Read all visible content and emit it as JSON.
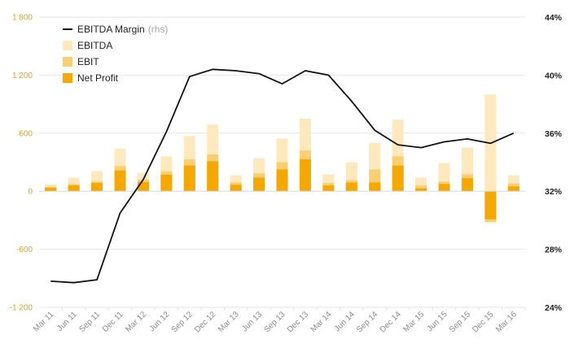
{
  "chart_data": {
    "type": "bar",
    "categories": [
      "Mar 11",
      "Jun 11",
      "Sep 11",
      "Dec 11",
      "Mar 12",
      "Jun 12",
      "Sep 12",
      "Dec 12",
      "Mar 13",
      "Jun 13",
      "Sep 13",
      "Dec 13",
      "Mar 14",
      "Jun 14",
      "Sep 14",
      "Dec 14",
      "Mar 15",
      "Jun 15",
      "Sep 15",
      "Dec 15",
      "Mar 16"
    ],
    "series": [
      {
        "name": "EBITDA",
        "kind": "bar",
        "axis": "left",
        "color": "#fde9bd",
        "values": [
          70,
          140,
          210,
          440,
          190,
          360,
          570,
          690,
          165,
          340,
          545,
          750,
          175,
          300,
          500,
          740,
          140,
          290,
          450,
          1000,
          165
        ]
      },
      {
        "name": "EBIT",
        "kind": "bar",
        "axis": "left",
        "color": "#f9cf72",
        "values": [
          45,
          75,
          100,
          260,
          120,
          205,
          330,
          380,
          90,
          185,
          300,
          420,
          85,
          115,
          225,
          360,
          60,
          100,
          175,
          -320,
          80
        ]
      },
      {
        "name": "Net Profit",
        "kind": "bar",
        "axis": "left",
        "color": "#f5a800",
        "values": [
          35,
          60,
          85,
          215,
          95,
          170,
          265,
          310,
          65,
          140,
          225,
          330,
          60,
          90,
          90,
          265,
          30,
          75,
          135,
          -290,
          50
        ]
      },
      {
        "name": "EBITDA Margin",
        "kind": "line",
        "axis": "right",
        "color": "#111111",
        "values": [
          25.8,
          25.7,
          25.9,
          30.5,
          32.8,
          36.1,
          39.9,
          40.4,
          40.3,
          40.1,
          39.4,
          40.3,
          40.0,
          38.2,
          36.2,
          35.2,
          35.0,
          35.4,
          35.6,
          35.3,
          36.0
        ]
      }
    ],
    "legend": {
      "position": "top-left",
      "items": [
        {
          "label": "EBITDA Margin",
          "note": "(rhs)",
          "color": "#111111",
          "kind": "line"
        },
        {
          "label": "EBITDA",
          "color": "#fde9bd",
          "kind": "bar"
        },
        {
          "label": "EBIT",
          "color": "#f9cf72",
          "kind": "bar"
        },
        {
          "label": "Net Profit",
          "color": "#f5a800",
          "kind": "bar"
        }
      ]
    },
    "y_left": {
      "ticks": [
        "1 800",
        "1 200",
        "600",
        "0",
        "-600",
        "-1 200"
      ],
      "tick_values": [
        1800,
        1200,
        600,
        0,
        -600,
        -1200
      ],
      "lim": [
        -1200,
        1800
      ],
      "color": "#e0a11b"
    },
    "y_right": {
      "ticks": [
        "44%",
        "40%",
        "36%",
        "32%",
        "28%",
        "24%"
      ],
      "tick_values": [
        44,
        40,
        36,
        32,
        28,
        24
      ],
      "lim": [
        24,
        44
      ],
      "color": "#222222"
    },
    "grid": true
  }
}
